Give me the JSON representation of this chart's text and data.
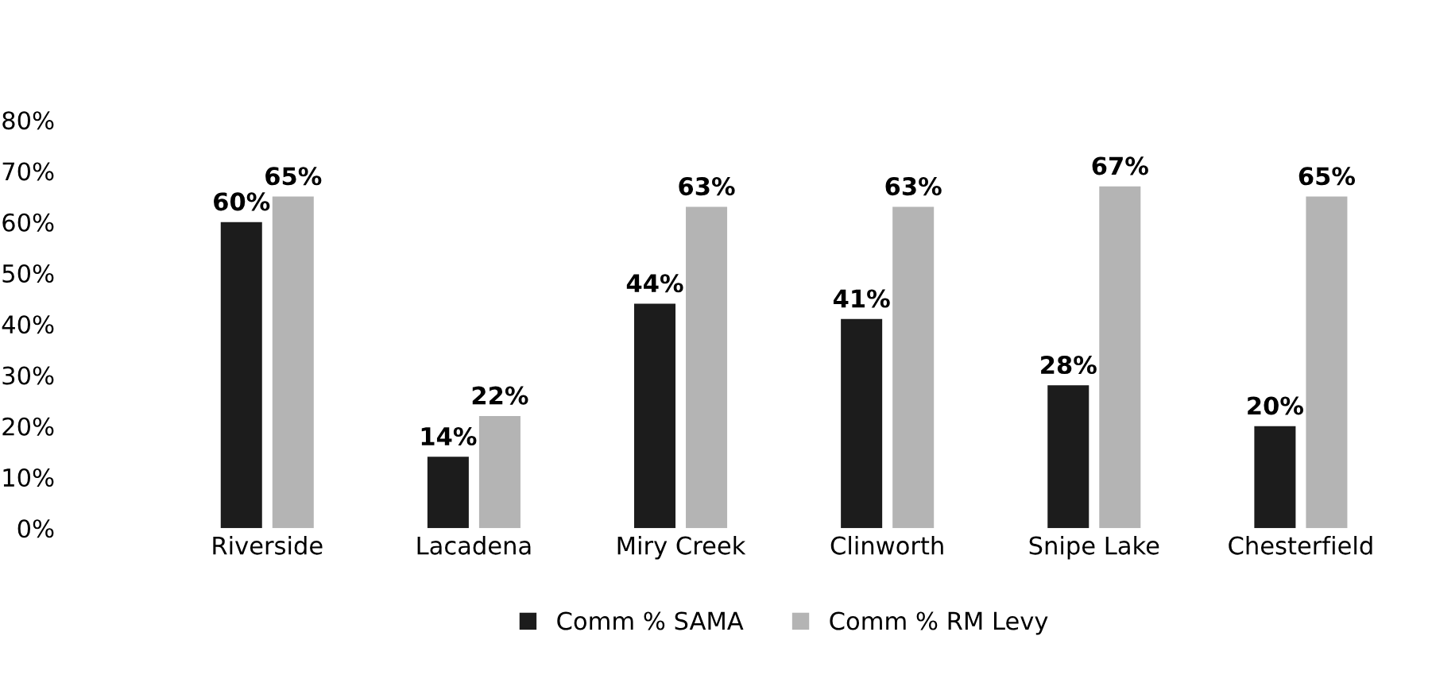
{
  "chart_data": {
    "type": "bar",
    "categories": [
      "Riverside",
      "Lacadena",
      "Miry Creek",
      "Clinworth",
      "Snipe Lake",
      "Chesterfield"
    ],
    "series": [
      {
        "name": "Comm % SAMA",
        "color": "#1c1c1c",
        "values": [
          60,
          14,
          44,
          41,
          28,
          20
        ]
      },
      {
        "name": "Comm % RM Levy",
        "color": "#b4b4b4",
        "values": [
          65,
          22,
          63,
          63,
          67,
          65
        ]
      }
    ],
    "ylim": [
      0,
      80
    ],
    "yticks": [
      {
        "value": 0,
        "label": "0%"
      },
      {
        "value": 10,
        "label": "10%"
      },
      {
        "value": 20,
        "label": "20%"
      },
      {
        "value": 30,
        "label": "30%"
      },
      {
        "value": 40,
        "label": "40%"
      },
      {
        "value": 50,
        "label": "50%"
      },
      {
        "value": 60,
        "label": "60%"
      },
      {
        "value": 70,
        "label": "70%"
      },
      {
        "value": 80,
        "label": "80%"
      }
    ],
    "value_labels": [
      [
        "60%",
        "14%",
        "44%",
        "41%",
        "28%",
        "20%"
      ],
      [
        "65%",
        "22%",
        "63%",
        "63%",
        "67%",
        "65%"
      ]
    ],
    "grid": false,
    "legend": "bottom"
  }
}
